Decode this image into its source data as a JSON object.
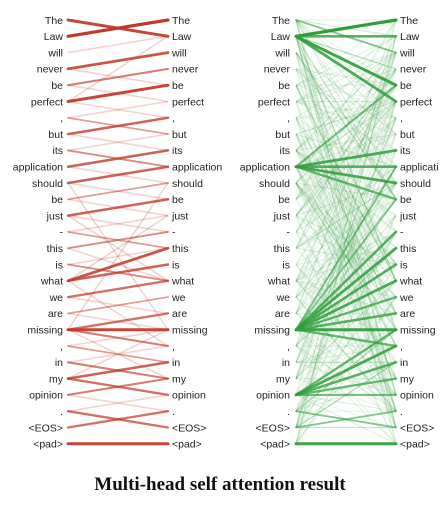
{
  "tokens": [
    "The",
    "Law",
    "will",
    "never",
    "be",
    "perfect",
    ",",
    "but",
    "its",
    "application",
    "should",
    "be",
    "just",
    "-",
    "this",
    "is",
    "what",
    "we",
    "are",
    "missing",
    ",",
    "in",
    "my",
    "opinion",
    ".",
    "<EOS>",
    "<pad>"
  ],
  "panels": [
    {
      "id": "left",
      "color": "#c0392b",
      "right_labels": [
        "The",
        "Law",
        "will",
        "never",
        "be",
        "perfect",
        ",",
        "but",
        "its",
        "application",
        "should",
        "be",
        "just",
        "-",
        "this",
        "is",
        "what",
        "we",
        "are",
        "missing",
        ",",
        "in",
        "my",
        "opinion",
        ".",
        "<EOS>",
        "<pad>"
      ],
      "strong": [
        [
          1,
          0,
          1
        ],
        [
          0,
          1,
          0.9
        ],
        [
          3,
          2,
          0.8
        ],
        [
          4,
          3,
          0.5
        ],
        [
          5,
          4,
          0.9
        ],
        [
          7,
          6,
          0.7
        ],
        [
          9,
          8,
          0.7
        ],
        [
          10,
          9,
          0.7
        ],
        [
          12,
          11,
          0.7
        ],
        [
          14,
          13,
          0.4
        ],
        [
          16,
          15,
          0.7
        ],
        [
          16,
          14,
          0.8
        ],
        [
          17,
          16,
          0.6
        ],
        [
          19,
          18,
          0.6
        ],
        [
          19,
          19,
          0.9
        ],
        [
          19,
          20,
          0.5
        ],
        [
          21,
          22,
          0.5
        ],
        [
          22,
          21,
          0.7
        ],
        [
          23,
          22,
          0.5
        ],
        [
          22,
          23,
          0.6
        ],
        [
          25,
          24,
          0.6
        ],
        [
          24,
          25,
          0.6
        ],
        [
          26,
          26,
          0.9
        ],
        [
          6,
          7,
          0.3
        ],
        [
          8,
          9,
          0.4
        ],
        [
          11,
          10,
          0.3
        ],
        [
          13,
          14,
          0.3
        ],
        [
          15,
          16,
          0.4
        ],
        [
          18,
          17,
          0.3
        ],
        [
          20,
          21,
          0.3
        ]
      ],
      "faint": [
        [
          2,
          1
        ],
        [
          4,
          5
        ],
        [
          5,
          6
        ],
        [
          7,
          8
        ],
        [
          8,
          7
        ],
        [
          10,
          11
        ],
        [
          11,
          12
        ],
        [
          12,
          13
        ],
        [
          13,
          12
        ],
        [
          15,
          14
        ],
        [
          14,
          16
        ],
        [
          17,
          18
        ],
        [
          18,
          19
        ],
        [
          20,
          19
        ],
        [
          21,
          20
        ],
        [
          23,
          24
        ],
        [
          24,
          23
        ],
        [
          9,
          10
        ],
        [
          3,
          4
        ],
        [
          6,
          5
        ],
        [
          12,
          16
        ],
        [
          16,
          12
        ],
        [
          19,
          22
        ],
        [
          22,
          19
        ],
        [
          10,
          19
        ],
        [
          19,
          10
        ],
        [
          5,
          1
        ],
        [
          16,
          20
        ]
      ]
    },
    {
      "id": "right",
      "color": "#2e9e3a",
      "right_labels": [
        "The",
        "Law",
        "will",
        "never",
        "be",
        "perfect",
        ",",
        "but",
        "its",
        "applicati",
        "should",
        "be",
        "just",
        "-",
        "this",
        "is",
        "what",
        "we",
        "are",
        "missing",
        ",",
        "in",
        "my",
        "opinion",
        ".",
        "<EOS>",
        "<pad>"
      ],
      "strong": [
        [
          1,
          0,
          1
        ],
        [
          1,
          1,
          0.7
        ],
        [
          1,
          4,
          0.9
        ],
        [
          1,
          5,
          0.8
        ],
        [
          0,
          2,
          0.4
        ],
        [
          9,
          8,
          0.8
        ],
        [
          9,
          9,
          0.7
        ],
        [
          9,
          10,
          0.8
        ],
        [
          9,
          11,
          0.6
        ],
        [
          9,
          4,
          0.5
        ],
        [
          19,
          13,
          0.7
        ],
        [
          19,
          14,
          0.8
        ],
        [
          19,
          15,
          0.7
        ],
        [
          19,
          16,
          0.8
        ],
        [
          19,
          17,
          0.6
        ],
        [
          19,
          18,
          0.7
        ],
        [
          19,
          19,
          0.9
        ],
        [
          19,
          20,
          0.6
        ],
        [
          19,
          11,
          0.4
        ],
        [
          23,
          20,
          0.8
        ],
        [
          23,
          21,
          0.7
        ],
        [
          23,
          22,
          0.6
        ],
        [
          23,
          23,
          0.5
        ],
        [
          23,
          19,
          0.6
        ],
        [
          25,
          24,
          0.4
        ],
        [
          24,
          25,
          0.4
        ],
        [
          26,
          26,
          0.9
        ],
        [
          19,
          9,
          0.4
        ]
      ],
      "faint_count": 300
    }
  ],
  "caption": "Multi-head self attention result"
}
